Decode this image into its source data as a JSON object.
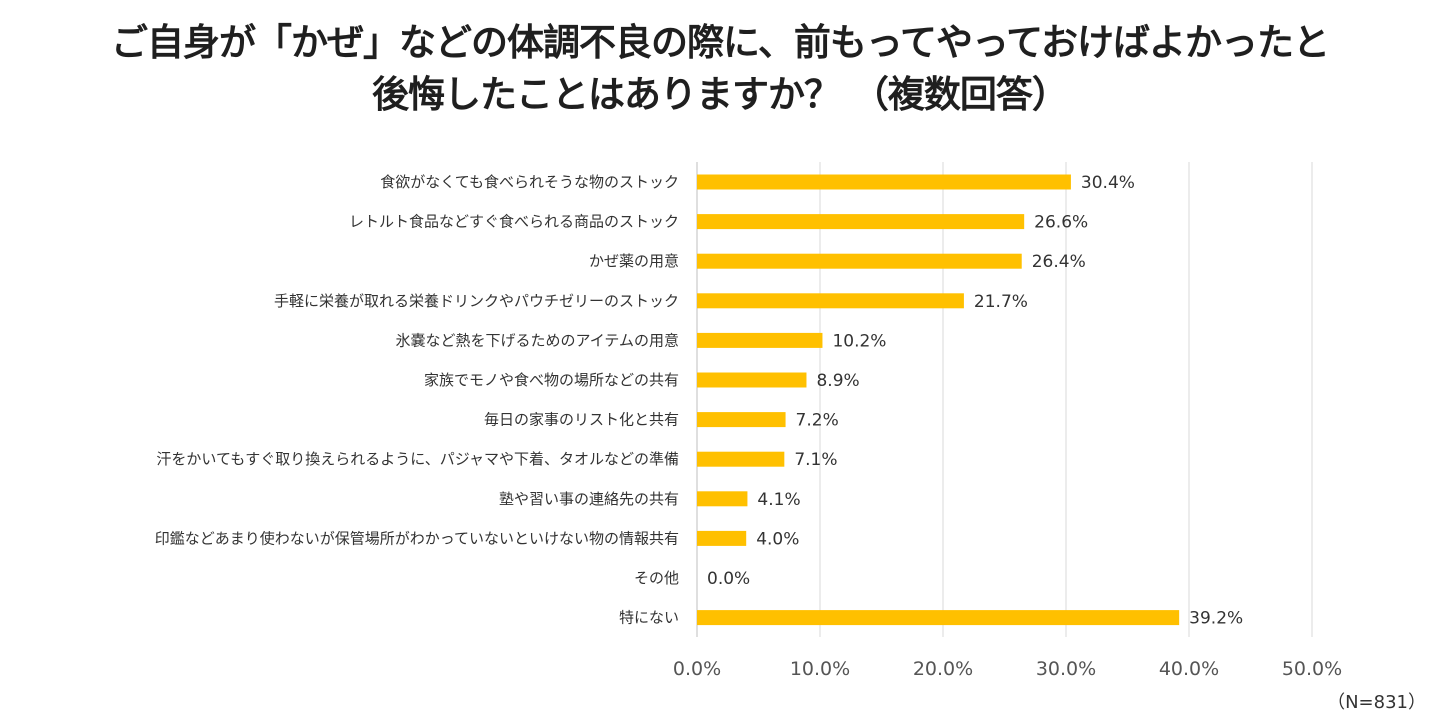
{
  "title_line1": "ご自身が「かぜ」などの体調不良の際に、前もってやっておけばよかったと",
  "title_line2": "後悔したことはありますか？ （複数回答）",
  "note": "（N=831）",
  "colors": {
    "bar": "#FFC000",
    "grid": "#D9D9D9",
    "text": "#333333"
  },
  "chart_data": {
    "type": "bar",
    "orientation": "horizontal",
    "title": "ご自身が「かぜ」などの体調不良の際に、前もってやっておけばよかったと後悔したことはありますか？ （複数回答）",
    "categories": [
      "食欲がなくても食べられそうな物のストック",
      "レトルト食品などすぐ食べられる商品のストック",
      "かぜ薬の用意",
      "手軽に栄養が取れる栄養ドリンクやパウチゼリーのストック",
      "氷嚢など熱を下げるためのアイテムの用意",
      "家族でモノや食べ物の場所などの共有",
      "毎日の家事のリスト化と共有",
      "汗をかいてもすぐ取り換えられるように、パジャマや下着、タオルなどの準備",
      "塾や習い事の連絡先の共有",
      "印鑑などあまり使わないが保管場所がわかっていないといけない物の情報共有",
      "その他",
      "特にない"
    ],
    "values": [
      30.4,
      26.6,
      26.4,
      21.7,
      10.2,
      8.9,
      7.2,
      7.1,
      4.1,
      4.0,
      0.0,
      39.2
    ],
    "value_labels": [
      "30.4%",
      "26.6%",
      "26.4%",
      "21.7%",
      "10.2%",
      "8.9%",
      "7.2%",
      "7.1%",
      "4.1%",
      "4.0%",
      "0.0%",
      "39.2%"
    ],
    "xlim": [
      0,
      50
    ],
    "xticks": [
      0,
      10,
      20,
      30,
      40,
      50
    ],
    "xtick_labels": [
      "0.0%",
      "10.0%",
      "20.0%",
      "30.0%",
      "40.0%",
      "50.0%"
    ],
    "xlabel": "",
    "ylabel": "",
    "grid": true,
    "unit": "%"
  }
}
